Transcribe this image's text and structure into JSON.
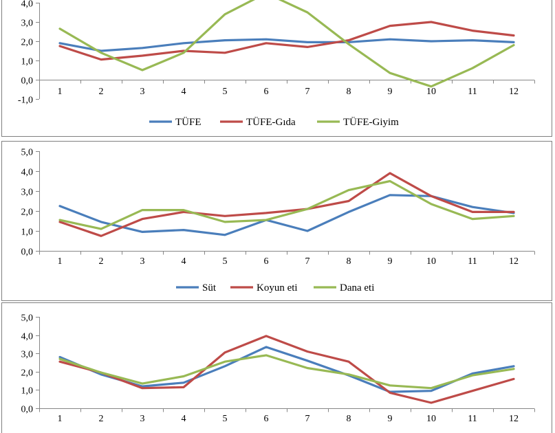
{
  "chart_data": [
    {
      "type": "line",
      "categories": [
        "1",
        "2",
        "3",
        "4",
        "5",
        "6",
        "7",
        "8",
        "9",
        "10",
        "11",
        "12"
      ],
      "ylim": [
        -1,
        4
      ],
      "yticks": [
        "-1,0",
        "0,0",
        "1,0",
        "2,0",
        "3,0",
        "4,0"
      ],
      "grid": false,
      "legend_position": "bottom",
      "series": [
        {
          "name": "TÜFE",
          "color": "#4a7ebb",
          "values": [
            1.9,
            1.5,
            1.65,
            1.9,
            2.05,
            2.1,
            1.95,
            1.95,
            2.1,
            2.0,
            2.05,
            1.95
          ]
        },
        {
          "name": "TÜFE-Gıda",
          "color": "#be4b48",
          "values": [
            1.75,
            1.05,
            1.25,
            1.5,
            1.4,
            1.9,
            1.7,
            2.05,
            2.8,
            3.0,
            2.55,
            2.3
          ]
        },
        {
          "name": "TÜFE-Giyim",
          "color": "#98b954",
          "values": [
            2.65,
            1.4,
            0.5,
            1.4,
            3.4,
            4.5,
            3.5,
            1.85,
            0.35,
            -0.35,
            0.6,
            1.8
          ]
        }
      ]
    },
    {
      "type": "line",
      "categories": [
        "1",
        "2",
        "3",
        "4",
        "5",
        "6",
        "7",
        "8",
        "9",
        "10",
        "11",
        "12"
      ],
      "ylim": [
        0,
        5
      ],
      "yticks": [
        "0,0",
        "1,0",
        "2,0",
        "3,0",
        "4,0",
        "5,0"
      ],
      "grid": false,
      "legend_position": "bottom",
      "series": [
        {
          "name": "Süt",
          "color": "#4a7ebb",
          "values": [
            2.25,
            1.45,
            0.95,
            1.05,
            0.8,
            1.55,
            1.0,
            1.95,
            2.8,
            2.75,
            2.2,
            1.9
          ]
        },
        {
          "name": "Koyun eti",
          "color": "#be4b48",
          "values": [
            1.45,
            0.75,
            1.6,
            1.95,
            1.75,
            1.9,
            2.1,
            2.5,
            3.9,
            2.75,
            1.95,
            1.95
          ]
        },
        {
          "name": "Dana eti",
          "color": "#98b954",
          "values": [
            1.55,
            1.1,
            2.05,
            2.05,
            1.45,
            1.55,
            2.1,
            3.05,
            3.5,
            2.35,
            1.6,
            1.75
          ]
        }
      ]
    },
    {
      "type": "line",
      "categories": [
        "1",
        "2",
        "3",
        "4",
        "5",
        "6",
        "7",
        "8",
        "9",
        "10",
        "11",
        "12"
      ],
      "ylim": [
        0,
        5
      ],
      "yticks": [
        "0,0",
        "1,0",
        "2,0",
        "3,0",
        "4,0",
        "5,0"
      ],
      "grid": false,
      "legend_position": "bottom",
      "series": [
        {
          "color": "#4a7ebb",
          "values": [
            2.8,
            1.85,
            1.2,
            1.4,
            2.3,
            3.35,
            2.6,
            1.8,
            0.9,
            0.95,
            1.9,
            2.3
          ]
        },
        {
          "color": "#be4b48",
          "values": [
            2.55,
            1.95,
            1.1,
            1.15,
            3.05,
            3.95,
            3.1,
            2.55,
            0.85,
            0.3,
            0.95,
            1.6
          ]
        },
        {
          "color": "#98b954",
          "values": [
            2.7,
            1.95,
            1.35,
            1.75,
            2.55,
            2.9,
            2.2,
            1.85,
            1.25,
            1.1,
            1.8,
            2.15
          ]
        }
      ]
    }
  ]
}
